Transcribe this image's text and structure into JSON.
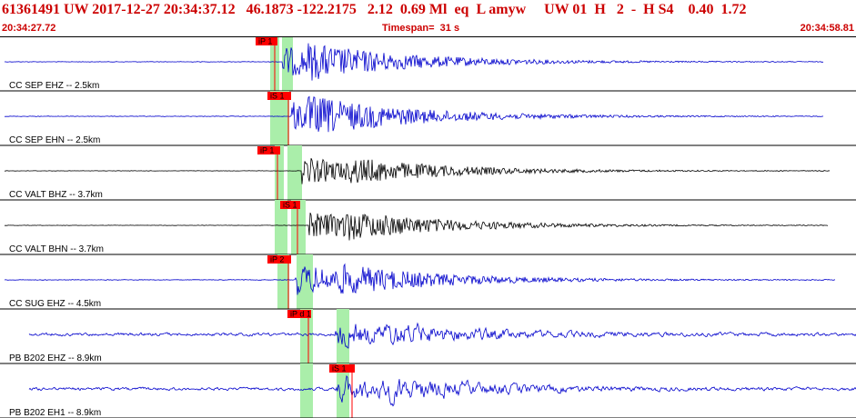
{
  "header": {
    "title": "61361491 UW 2017-12-27 20:34:37.12   46.1873 -122.2175   2.12  0.69 Ml  eq  L amyw     UW 01  H   2  -  H S4    0.40  1.72",
    "start_time": "20:34:27.72",
    "timespan_label": "Timespan=  31 s",
    "end_time": "20:34:58.81"
  },
  "colors": {
    "trace": "#0000cc",
    "trace_highlight": "#000000",
    "phase_flag": "#ff0000",
    "window_band": "#aaeeaa",
    "separator": "#000000",
    "header_text": "#cc0000"
  },
  "channels": [
    {
      "label": "CC SEP EHZ -- 2.5km",
      "phase": "iP 1",
      "noise": 0.05,
      "amp": 1.0,
      "onset": 0.34,
      "secondary": 0.37
    },
    {
      "label": "CC SEP EHN -- 2.5km",
      "phase": "iS 1",
      "noise": 0.05,
      "amp": 1.0,
      "onset": 0.35,
      "secondary": 0.37
    },
    {
      "label": "CC VALT BHZ -- 3.7km",
      "phase": "iP 1",
      "noise": 0.04,
      "amp": 0.9,
      "onset": 0.36,
      "secondary": 0.42
    },
    {
      "label": "CC VALT BHN -- 3.7km",
      "phase": "iS 1",
      "noise": 0.04,
      "amp": 0.9,
      "onset": 0.37,
      "secondary": 0.41
    },
    {
      "label": "CC SUG EHZ -- 4.5km",
      "phase": "iP 2",
      "noise": 0.06,
      "amp": 1.0,
      "onset": 0.35,
      "secondary": 0.4
    },
    {
      "label": "PB B202 EHZ -- 8.9km",
      "phase": "iP d 1",
      "noise": 0.35,
      "amp": 1.0,
      "onset": 0.37,
      "secondary": 0.43
    },
    {
      "label": "PB B202 EH1 -- 8.9km",
      "phase": "iS 1",
      "noise": 0.35,
      "amp": 1.0,
      "onset": 0.37,
      "secondary": 0.43
    }
  ]
}
